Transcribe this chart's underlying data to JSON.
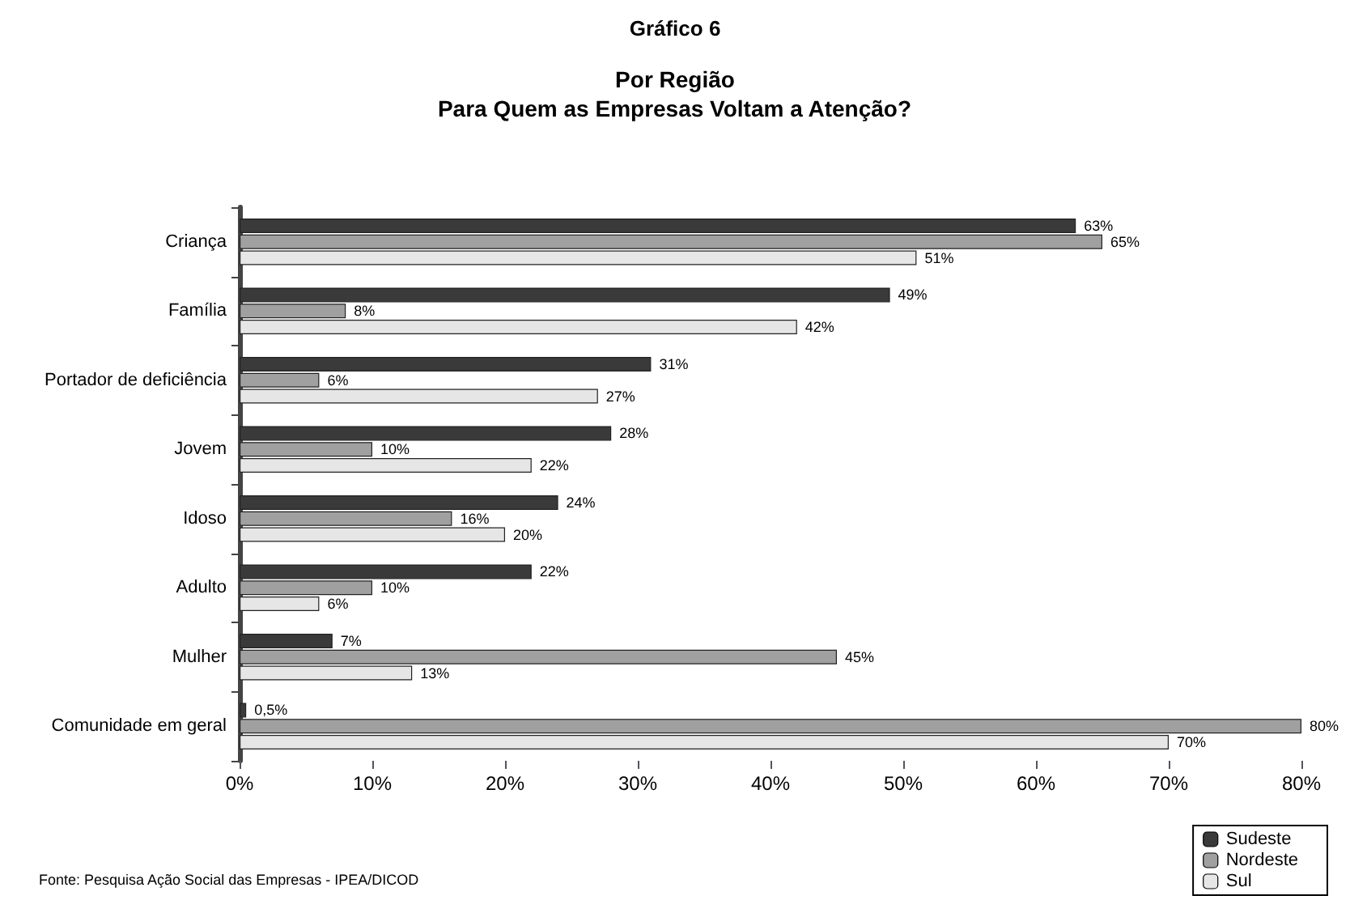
{
  "chart_data": {
    "type": "bar",
    "orientation": "horizontal",
    "title": "Gráfico 6",
    "subtitle": "Por Região\nPara Quem as Empresas Voltam a Atenção?",
    "categories": [
      "Criança",
      "Família",
      "Portador de deficiência",
      "Jovem",
      "Idoso",
      "Adulto",
      "Mulher",
      "Comunidade em geral"
    ],
    "series": [
      {
        "name": "Sudeste",
        "color": "#3a3a3a",
        "values": [
          63,
          49,
          31,
          28,
          24,
          22,
          7,
          0.5
        ],
        "value_labels": [
          "63%",
          "49%",
          "31%",
          "28%",
          "24%",
          "22%",
          "7%",
          "0,5%"
        ]
      },
      {
        "name": "Nordeste",
        "color": "#a0a0a0",
        "values": [
          65,
          8,
          6,
          10,
          16,
          10,
          45,
          80
        ],
        "value_labels": [
          "65%",
          "8%",
          "6%",
          "10%",
          "16%",
          "10%",
          "45%",
          "80%"
        ]
      },
      {
        "name": "Sul",
        "color": "#e6e6e6",
        "values": [
          51,
          42,
          27,
          22,
          20,
          6,
          13,
          70
        ],
        "value_labels": [
          "51%",
          "42%",
          "27%",
          "22%",
          "20%",
          "6%",
          "13%",
          "70%"
        ]
      }
    ],
    "xlim": [
      0,
      80
    ],
    "xticks": [
      {
        "value": 0,
        "label": "0%"
      },
      {
        "value": 10,
        "label": "10%"
      },
      {
        "value": 20,
        "label": "20%"
      },
      {
        "value": 30,
        "label": "30%"
      },
      {
        "value": 40,
        "label": "40%"
      },
      {
        "value": 50,
        "label": "50%"
      },
      {
        "value": 60,
        "label": "60%"
      },
      {
        "value": 70,
        "label": "70%"
      },
      {
        "value": 80,
        "label": "80%"
      }
    ],
    "grid": false,
    "legend": "bottom right",
    "annotations": [
      "Fonte: Pesquisa Ação Social das Empresas - IPEA/DICOD"
    ]
  }
}
